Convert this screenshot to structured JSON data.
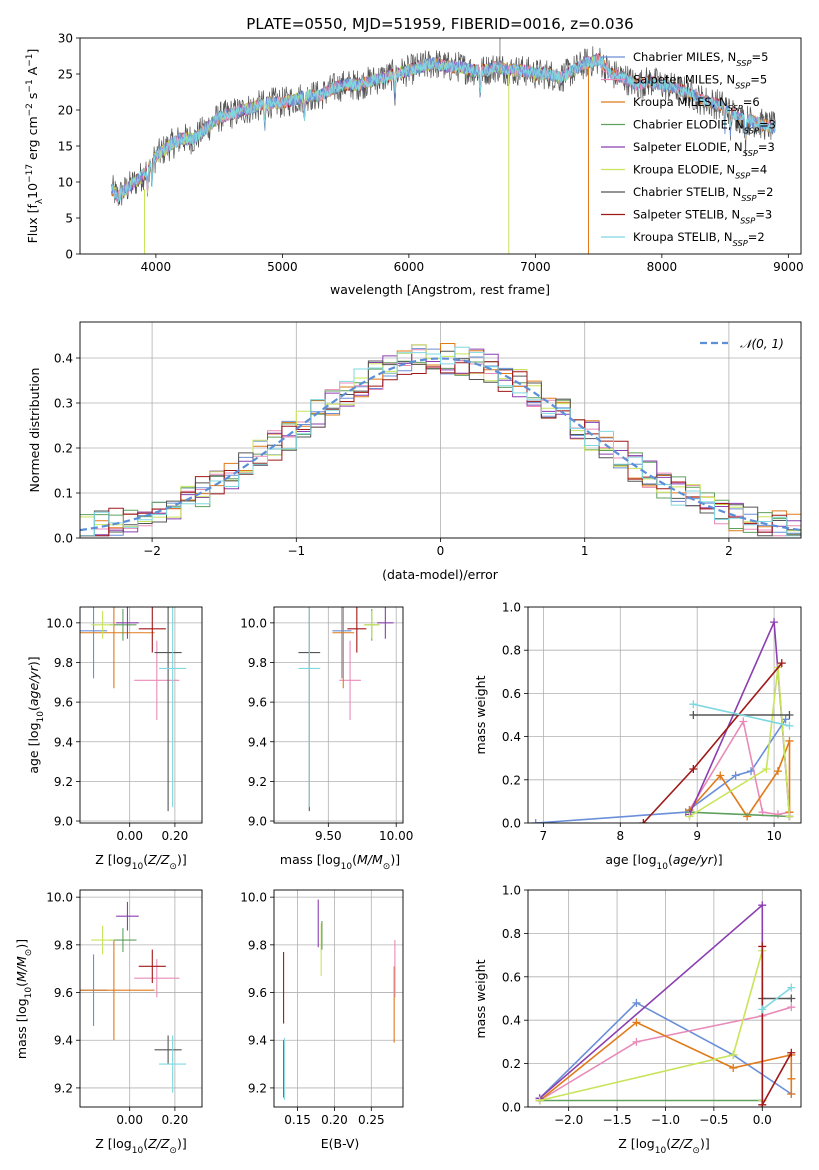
{
  "colors": {
    "Chabrier MILES": "#6a8fd8",
    "Salpeter MILES": "#e88bb8",
    "Kroupa MILES": "#e07a1a",
    "Chabrier ELODIE": "#5fa05f",
    "Salpeter ELODIE": "#8b3fb0",
    "Kroupa ELODIE": "#c8e45a",
    "Chabrier STELIB": "#555555",
    "Salpeter STELIB": "#a01818",
    "Kroupa STELIB": "#7fd8e0",
    "gaussian": "#5b8fd8"
  },
  "chart_data": [
    {
      "type": "line",
      "title": "PLATE=0550, MJD=51959, FIBERID=0016, z=0.036",
      "xlabel": "wavelength [Angstrom, rest frame]",
      "ylabel": "Flux [fλ10⁻¹⁷ erg cm⁻² s⁻¹ A⁻¹]",
      "xlim": [
        3400,
        9100
      ],
      "ylim": [
        0,
        30
      ],
      "xticks": [
        4000,
        5000,
        6000,
        7000,
        8000,
        9000
      ],
      "yticks": [
        0,
        5,
        10,
        15,
        20,
        25,
        30
      ],
      "legend": "upper right",
      "legend_entries": [
        {
          "label": "Chabrier MILES, N",
          "sub": "SSP",
          "tail": "=5",
          "key": "Chabrier MILES"
        },
        {
          "label": "Salpeter MILES, N",
          "sub": "SSP",
          "tail": "=5",
          "key": "Salpeter MILES"
        },
        {
          "label": "Kroupa MILES, N",
          "sub": "SSP",
          "tail": "=6",
          "key": "Kroupa MILES"
        },
        {
          "label": "Chabrier ELODIE, N",
          "sub": "SSP",
          "tail": "=3",
          "key": "Chabrier ELODIE"
        },
        {
          "label": "Salpeter ELODIE, N",
          "sub": "SSP",
          "tail": "=3",
          "key": "Salpeter ELODIE"
        },
        {
          "label": "Kroupa ELODIE, N",
          "sub": "SSP",
          "tail": "=4",
          "key": "Kroupa ELODIE"
        },
        {
          "label": "Chabrier STELIB, N",
          "sub": "SSP",
          "tail": "=2",
          "key": "Chabrier STELIB"
        },
        {
          "label": "Salpeter STELIB, N",
          "sub": "SSP",
          "tail": "=3",
          "key": "Salpeter STELIB"
        },
        {
          "label": "Kroupa STELIB, N",
          "sub": "SSP",
          "tail": "=2",
          "key": "Kroupa STELIB"
        }
      ],
      "continuum": {
        "x": [
          3650,
          3700,
          3800,
          3900,
          4000,
          4100,
          4200,
          4300,
          4400,
          4500,
          4600,
          4700,
          4800,
          4900,
          5000,
          5100,
          5200,
          5300,
          5400,
          5500,
          5600,
          5700,
          5800,
          5900,
          6000,
          6100,
          6200,
          6300,
          6400,
          6500,
          6600,
          6700,
          6800,
          6900,
          7000,
          7100,
          7200,
          7300,
          7400,
          7500,
          7600,
          7700,
          7800,
          7900,
          8000,
          8100,
          8200,
          8300,
          8400,
          8500,
          8600,
          8700,
          8800,
          8900
        ],
        "y": [
          9,
          8,
          9.5,
          11,
          13.5,
          15,
          16,
          16,
          17.5,
          19,
          19.5,
          20,
          20.5,
          21,
          21,
          21.5,
          22,
          22,
          23,
          23.5,
          23.5,
          24,
          24.5,
          25,
          25.5,
          26,
          26.5,
          26,
          26,
          25.5,
          25.5,
          26,
          25.5,
          25.5,
          25,
          25,
          24.5,
          25.5,
          26.5,
          27,
          25,
          24.5,
          23.5,
          24,
          23.5,
          23,
          22.5,
          21.5,
          21,
          20.5,
          19,
          18.5,
          18,
          17.5
        ]
      }
    },
    {
      "type": "bar",
      "xlabel": "(data-model)/error",
      "ylabel": "Normed distribution",
      "xlim": [
        -2.5,
        2.5
      ],
      "ylim": [
        0,
        0.48
      ],
      "xticks": [
        -2,
        -1,
        0,
        1,
        2
      ],
      "yticks": [
        0.0,
        0.1,
        0.2,
        0.3,
        0.4
      ],
      "legend": "upper right",
      "legend_label": "𝒩(0, 1)",
      "bin_width": 0.1,
      "histogram": "step histograms of 9 models approximating N(0,1)"
    },
    {
      "type": "scatter",
      "xlabel": "Z [log₁₀(Z/Z⊙)]",
      "ylabel": "age  [log₁₀(age/yr)]",
      "xlim": [
        -0.22,
        0.32
      ],
      "ylim": [
        8.99,
        10.08
      ],
      "xticks": [
        0.0,
        0.2
      ],
      "yticks": [
        9.0,
        9.2,
        9.4,
        9.6,
        9.8,
        10.0
      ],
      "points": [
        {
          "key": "Chabrier MILES",
          "x": -0.16,
          "xe": 0.06,
          "y": 9.96,
          "ye": 0.24
        },
        {
          "key": "Salpeter MILES",
          "x": 0.12,
          "xe": 0.1,
          "y": 9.71,
          "ye": 0.2
        },
        {
          "key": "Kroupa MILES",
          "x": -0.07,
          "xe": 0.18,
          "y": 9.95,
          "ye": 0.28
        },
        {
          "key": "Chabrier ELODIE",
          "x": -0.03,
          "xe": 0.06,
          "y": 9.99,
          "ye": 0.08
        },
        {
          "key": "Salpeter ELODIE",
          "x": -0.01,
          "xe": 0.05,
          "y": 10.0,
          "ye": 0.08
        },
        {
          "key": "Kroupa ELODIE",
          "x": -0.12,
          "xe": 0.05,
          "y": 9.99,
          "ye": 0.07
        },
        {
          "key": "Chabrier STELIB",
          "x": 0.17,
          "xe": 0.06,
          "y": 9.85,
          "ye": 0.8
        },
        {
          "key": "Salpeter STELIB",
          "x": 0.1,
          "xe": 0.06,
          "y": 9.97,
          "ye": 0.12
        },
        {
          "key": "Kroupa STELIB",
          "x": 0.19,
          "xe": 0.06,
          "y": 9.77,
          "ye": 0.7
        }
      ]
    },
    {
      "type": "scatter",
      "xlabel": "mass [log₁₀(M/M⊙)]",
      "xlim": [
        9.1,
        10.05
      ],
      "ylim": [
        8.99,
        10.08
      ],
      "xticks": [
        9.5,
        10.0
      ],
      "yticks": [
        9.0,
        9.2,
        9.4,
        9.6,
        9.8,
        10.0
      ],
      "points": [
        {
          "key": "Chabrier MILES",
          "x": 9.6,
          "xe": 0.07,
          "y": 9.96,
          "ye": 0.24
        },
        {
          "key": "Salpeter MILES",
          "x": 9.66,
          "xe": 0.08,
          "y": 9.71,
          "ye": 0.2
        },
        {
          "key": "Kroupa MILES",
          "x": 9.61,
          "xe": 0.08,
          "y": 9.95,
          "ye": 0.28
        },
        {
          "key": "Chabrier ELODIE",
          "x": 9.82,
          "xe": 0.05,
          "y": 9.99,
          "ye": 0.08
        },
        {
          "key": "Salpeter ELODIE",
          "x": 9.92,
          "xe": 0.06,
          "y": 10.0,
          "ye": 0.08
        },
        {
          "key": "Kroupa ELODIE",
          "x": 9.82,
          "xe": 0.06,
          "y": 9.99,
          "ye": 0.07
        },
        {
          "key": "Chabrier STELIB",
          "x": 9.36,
          "xe": 0.08,
          "y": 9.85,
          "ye": 0.8
        },
        {
          "key": "Salpeter STELIB",
          "x": 9.71,
          "xe": 0.07,
          "y": 9.97,
          "ye": 0.12
        },
        {
          "key": "Kroupa STELIB",
          "x": 9.36,
          "xe": 0.08,
          "y": 9.77,
          "ye": 0.7
        }
      ]
    },
    {
      "type": "line",
      "xlabel": "age  [log₁₀(age/yr)]",
      "ylabel": "mass weight",
      "xlim": [
        6.8,
        10.35
      ],
      "ylim": [
        0,
        1
      ],
      "xticks": [
        7,
        8,
        9,
        10
      ],
      "yticks": [
        0.0,
        0.2,
        0.4,
        0.6,
        0.8,
        1.0
      ],
      "series": [
        {
          "key": "Chabrier MILES",
          "x": [
            6.9,
            8.85,
            9.5,
            9.7,
            10.15
          ],
          "y": [
            0.0,
            0.05,
            0.22,
            0.24,
            0.48
          ]
        },
        {
          "key": "Salpeter MILES",
          "x": [
            8.9,
            9.6,
            9.85,
            10.05,
            10.2
          ],
          "y": [
            0.06,
            0.47,
            0.05,
            0.04,
            0.05
          ]
        },
        {
          "key": "Kroupa MILES",
          "x": [
            8.9,
            9.3,
            9.65,
            10.05,
            10.2,
            10.2
          ],
          "y": [
            0.06,
            0.22,
            0.03,
            0.24,
            0.38,
            0.05
          ]
        },
        {
          "key": "Chabrier ELODIE",
          "x": [
            8.9,
            10.2
          ],
          "y": [
            0.05,
            0.03
          ]
        },
        {
          "key": "Salpeter ELODIE",
          "x": [
            8.9,
            10.0,
            10.2
          ],
          "y": [
            0.04,
            0.93,
            0.03
          ]
        },
        {
          "key": "Kroupa ELODIE",
          "x": [
            8.9,
            9.9,
            10.05,
            10.2
          ],
          "y": [
            0.03,
            0.25,
            0.72,
            0.03
          ]
        },
        {
          "key": "Chabrier STELIB",
          "x": [
            8.95,
            10.2
          ],
          "y": [
            0.5,
            0.5
          ]
        },
        {
          "key": "Salpeter STELIB",
          "x": [
            8.3,
            8.95,
            10.1
          ],
          "y": [
            0.0,
            0.25,
            0.74
          ]
        },
        {
          "key": "Kroupa STELIB",
          "x": [
            8.95,
            10.2
          ],
          "y": [
            0.55,
            0.45
          ]
        }
      ]
    },
    {
      "type": "scatter",
      "xlabel": "Z [log₁₀(Z/Z⊙)]",
      "ylabel": "mass [log₁₀(M/M⊙)]",
      "xlim": [
        -0.22,
        0.32
      ],
      "ylim": [
        9.12,
        10.03
      ],
      "xticks": [
        0.0,
        0.2
      ],
      "yticks": [
        9.2,
        9.4,
        9.6,
        9.8,
        10.0
      ],
      "points": [
        {
          "key": "Chabrier MILES",
          "x": -0.16,
          "xe": 0.06,
          "y": 9.61,
          "ye": 0.15
        },
        {
          "key": "Salpeter MILES",
          "x": 0.12,
          "xe": 0.1,
          "y": 9.66,
          "ye": 0.08
        },
        {
          "key": "Kroupa MILES",
          "x": -0.07,
          "xe": 0.18,
          "y": 9.61,
          "ye": 0.21
        },
        {
          "key": "Chabrier ELODIE",
          "x": -0.03,
          "xe": 0.06,
          "y": 9.82,
          "ye": 0.05
        },
        {
          "key": "Salpeter ELODIE",
          "x": -0.01,
          "xe": 0.05,
          "y": 9.92,
          "ye": 0.06
        },
        {
          "key": "Kroupa ELODIE",
          "x": -0.12,
          "xe": 0.05,
          "y": 9.82,
          "ye": 0.06
        },
        {
          "key": "Chabrier STELIB",
          "x": 0.17,
          "xe": 0.06,
          "y": 9.36,
          "ye": 0.06
        },
        {
          "key": "Salpeter STELIB",
          "x": 0.1,
          "xe": 0.06,
          "y": 9.71,
          "ye": 0.07
        },
        {
          "key": "Kroupa STELIB",
          "x": 0.19,
          "xe": 0.06,
          "y": 9.3,
          "ye": 0.12
        }
      ]
    },
    {
      "type": "scatter",
      "xlabel": "E(B-V)",
      "xlim": [
        0.118,
        0.293
      ],
      "ylim": [
        9.12,
        10.03
      ],
      "xticks": [
        0.15,
        0.2,
        0.25
      ],
      "points": [
        {
          "key": "Salpeter STELIB",
          "x": 0.131,
          "y": 9.62,
          "ye": 0.15
        },
        {
          "key": "Chabrier STELIB",
          "x": 0.131,
          "y": 9.28,
          "ye": 0.12
        },
        {
          "key": "Kroupa STELIB",
          "x": 0.132,
          "y": 9.28,
          "ye": 0.13
        },
        {
          "key": "Salpeter ELODIE",
          "x": 0.178,
          "y": 9.89,
          "ye": 0.1
        },
        {
          "key": "Kroupa ELODIE",
          "x": 0.182,
          "y": 9.78,
          "ye": 0.11
        },
        {
          "key": "Chabrier ELODIE",
          "x": 0.183,
          "y": 9.84,
          "ye": 0.06
        },
        {
          "key": "Kroupa MILES",
          "x": 0.281,
          "y": 9.55,
          "ye": 0.16
        },
        {
          "key": "Salpeter MILES",
          "x": 0.282,
          "y": 9.7,
          "ye": 0.12
        }
      ]
    },
    {
      "type": "line",
      "xlabel": "Z [log₁₀(Z/Z⊙)]",
      "ylabel": "mass weight",
      "xlim": [
        -2.42,
        0.4
      ],
      "ylim": [
        0,
        1
      ],
      "xticks": [
        -2.0,
        -1.5,
        -1.0,
        -0.5,
        0.0
      ],
      "yticks": [
        0.0,
        0.2,
        0.4,
        0.6,
        0.8,
        1.0
      ],
      "series": [
        {
          "key": "Chabrier MILES",
          "x": [
            -2.3,
            -1.3,
            -0.3,
            0.3
          ],
          "y": [
            0.04,
            0.48,
            0.24,
            0.06
          ]
        },
        {
          "key": "Salpeter MILES",
          "x": [
            -2.3,
            -1.3,
            0.0,
            0.3
          ],
          "y": [
            0.03,
            0.3,
            0.42,
            0.46
          ]
        },
        {
          "key": "Kroupa MILES",
          "x": [
            -2.3,
            -1.3,
            -0.3,
            0.3,
            0.3,
            0.3
          ],
          "y": [
            0.03,
            0.39,
            0.18,
            0.24,
            0.13,
            0.06
          ]
        },
        {
          "key": "Chabrier ELODIE",
          "x": [
            -2.3,
            0.0
          ],
          "y": [
            0.03,
            0.03
          ]
        },
        {
          "key": "Salpeter ELODIE",
          "x": [
            -2.3,
            0.0,
            0.0
          ],
          "y": [
            0.04,
            0.93,
            0.03
          ]
        },
        {
          "key": "Kroupa ELODIE",
          "x": [
            -2.3,
            -0.3,
            0.0,
            0.0
          ],
          "y": [
            0.03,
            0.24,
            0.72,
            0.03
          ]
        },
        {
          "key": "Chabrier STELIB",
          "x": [
            0.0,
            0.3
          ],
          "y": [
            0.5,
            0.5
          ]
        },
        {
          "key": "Salpeter STELIB",
          "x": [
            0.0,
            0.0,
            0.3
          ],
          "y": [
            0.74,
            0.01,
            0.25
          ]
        },
        {
          "key": "Kroupa STELIB",
          "x": [
            0.0,
            0.3
          ],
          "y": [
            0.45,
            0.55
          ]
        }
      ]
    }
  ]
}
